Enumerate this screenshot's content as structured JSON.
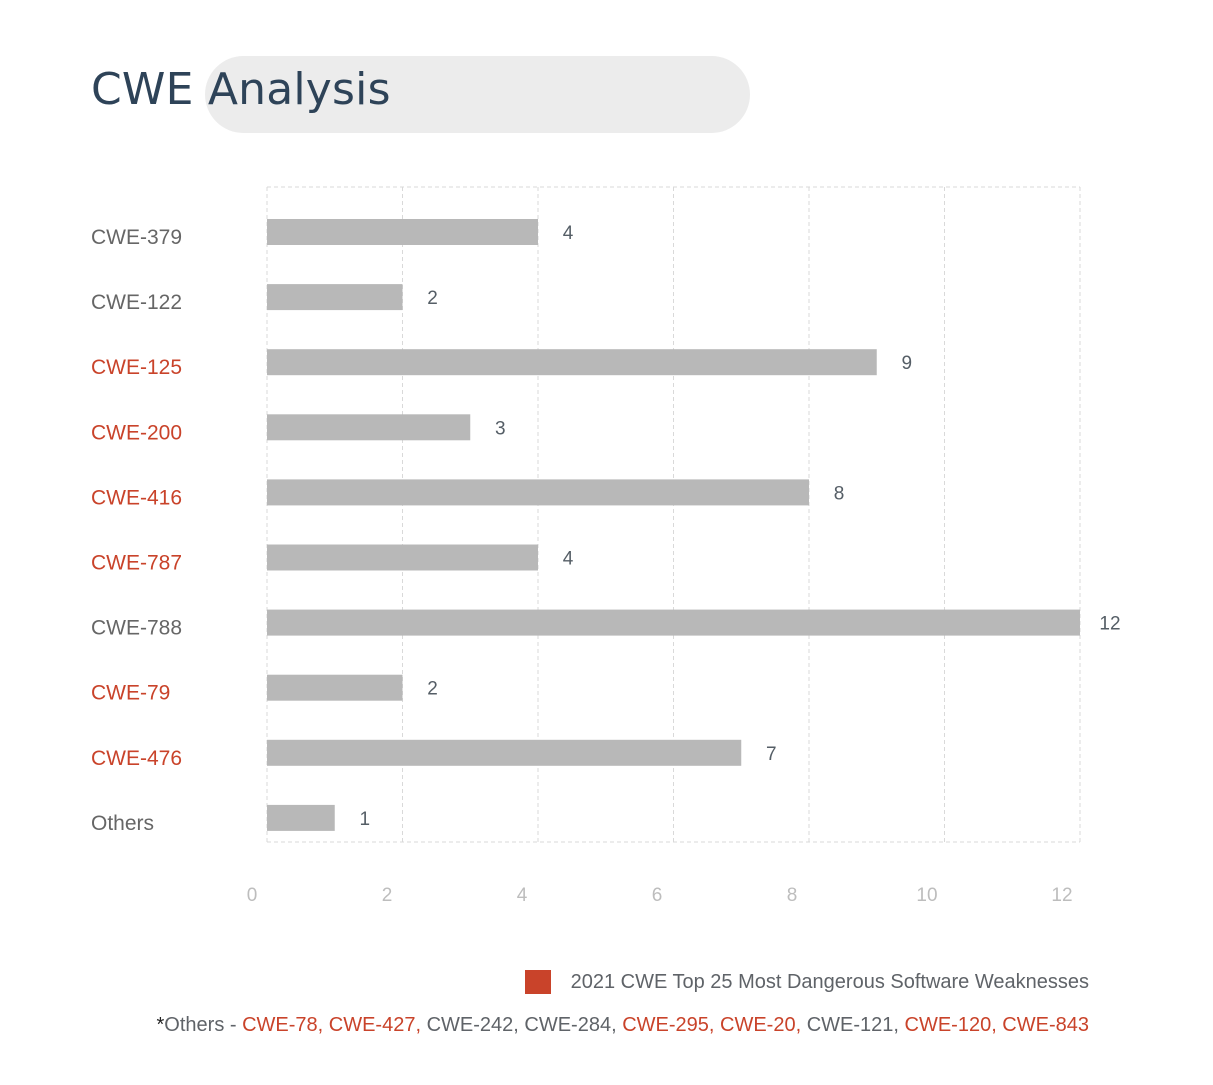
{
  "title": "CWE Analysis",
  "colors": {
    "bar": "#b8b8b8",
    "highlight": "#c9432a",
    "normal": "#666666",
    "grid": "#d9d9d9",
    "tick": "#bdbdbd"
  },
  "chart_data": {
    "type": "bar",
    "orientation": "horizontal",
    "categories": [
      "CWE-379",
      "CWE-122",
      "CWE-125",
      "CWE-200",
      "CWE-416",
      "CWE-787",
      "CWE-788",
      "CWE-79",
      "CWE-476",
      "Others"
    ],
    "values": [
      4,
      2,
      9,
      3,
      8,
      4,
      12,
      2,
      7,
      1
    ],
    "highlighted": [
      false,
      false,
      true,
      true,
      true,
      true,
      false,
      true,
      true,
      false
    ],
    "xticks": [
      0,
      2,
      4,
      6,
      8,
      10,
      12
    ],
    "xlim": [
      0,
      12
    ],
    "grid": "vertical dashed",
    "legend_position": "bottom-right"
  },
  "legend": {
    "label": "2021 CWE Top 25 Most Dangerous Software Weaknesses"
  },
  "footnote": {
    "star": "*",
    "parts": [
      {
        "text": "Others - ",
        "hl": false
      },
      {
        "text": "CWE-78, CWE-427,",
        "hl": true
      },
      {
        "text": " CWE-242, CWE-284, ",
        "hl": false
      },
      {
        "text": "CWE-295, CWE-20,",
        "hl": true
      },
      {
        "text": " CWE-121, ",
        "hl": false
      },
      {
        "text": "CWE-120, CWE-843",
        "hl": true
      }
    ]
  }
}
